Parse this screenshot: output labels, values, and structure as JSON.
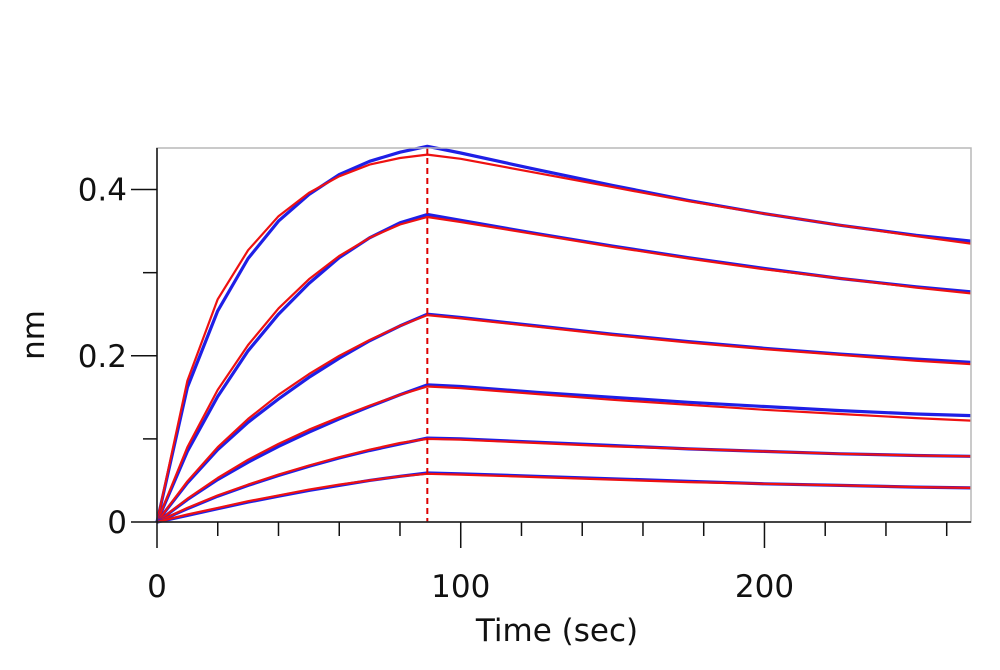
{
  "chart_data": {
    "type": "line",
    "xlabel": "Time (sec)",
    "ylabel": "nm",
    "xlim": [
      0,
      268
    ],
    "ylim": [
      0,
      0.45
    ],
    "x_ticks": [
      0,
      100,
      200
    ],
    "x_minor_step": 20,
    "y_ticks": [
      0,
      0.2,
      0.4
    ],
    "y_minor_step": 0.1,
    "grid": false,
    "legend": "none",
    "association_end_x": 89,
    "marker_color": "#dd0000",
    "series": [
      {
        "role": "measured",
        "color": "#1f1fe6",
        "x": [
          0,
          10,
          20,
          30,
          40,
          50,
          60,
          70,
          80,
          89,
          100,
          125,
          150,
          175,
          200,
          225,
          250,
          268
        ],
        "y": [
          0.0,
          0.162,
          0.254,
          0.317,
          0.362,
          0.394,
          0.418,
          0.434,
          0.445,
          0.452,
          0.444,
          0.424,
          0.405,
          0.387,
          0.371,
          0.357,
          0.345,
          0.338
        ]
      },
      {
        "role": "fit",
        "color": "#ee1111",
        "x": [
          0,
          10,
          20,
          30,
          40,
          50,
          60,
          70,
          80,
          89,
          100,
          125,
          150,
          175,
          200,
          225,
          250,
          268
        ],
        "y": [
          0.0,
          0.17,
          0.268,
          0.327,
          0.368,
          0.396,
          0.416,
          0.43,
          0.438,
          0.442,
          0.437,
          0.42,
          0.403,
          0.386,
          0.371,
          0.357,
          0.344,
          0.335
        ]
      },
      {
        "role": "measured",
        "color": "#1f1fe6",
        "x": [
          0,
          10,
          20,
          30,
          40,
          50,
          60,
          70,
          80,
          89,
          100,
          125,
          150,
          175,
          200,
          225,
          250,
          268
        ],
        "y": [
          0.0,
          0.085,
          0.151,
          0.206,
          0.25,
          0.287,
          0.318,
          0.342,
          0.36,
          0.37,
          0.363,
          0.347,
          0.332,
          0.318,
          0.305,
          0.293,
          0.283,
          0.277
        ]
      },
      {
        "role": "fit",
        "color": "#ee1111",
        "x": [
          0,
          10,
          20,
          30,
          40,
          50,
          60,
          70,
          80,
          89,
          100,
          125,
          150,
          175,
          200,
          225,
          250,
          268
        ],
        "y": [
          0.0,
          0.09,
          0.159,
          0.213,
          0.257,
          0.292,
          0.32,
          0.342,
          0.358,
          0.367,
          0.361,
          0.346,
          0.331,
          0.317,
          0.304,
          0.293,
          0.282,
          0.275
        ]
      },
      {
        "role": "measured",
        "color": "#1f1fe6",
        "x": [
          0,
          10,
          20,
          30,
          40,
          50,
          60,
          70,
          80,
          89,
          100,
          125,
          150,
          175,
          200,
          225,
          250,
          268
        ],
        "y": [
          0.0,
          0.047,
          0.087,
          0.12,
          0.148,
          0.174,
          0.197,
          0.218,
          0.236,
          0.25,
          0.246,
          0.236,
          0.226,
          0.217,
          0.209,
          0.202,
          0.196,
          0.192
        ]
      },
      {
        "role": "fit",
        "color": "#ee1111",
        "x": [
          0,
          10,
          20,
          30,
          40,
          50,
          60,
          70,
          80,
          89,
          100,
          125,
          150,
          175,
          200,
          225,
          250,
          268
        ],
        "y": [
          0.0,
          0.049,
          0.09,
          0.124,
          0.153,
          0.178,
          0.2,
          0.219,
          0.236,
          0.249,
          0.245,
          0.235,
          0.225,
          0.216,
          0.208,
          0.201,
          0.194,
          0.19
        ]
      },
      {
        "role": "measured",
        "color": "#1f1fe6",
        "x": [
          0,
          10,
          20,
          30,
          40,
          50,
          60,
          70,
          80,
          89,
          100,
          125,
          150,
          175,
          200,
          225,
          250,
          268
        ],
        "y": [
          0.0,
          0.027,
          0.051,
          0.072,
          0.091,
          0.108,
          0.124,
          0.139,
          0.153,
          0.165,
          0.163,
          0.156,
          0.15,
          0.144,
          0.139,
          0.134,
          0.13,
          0.128
        ]
      },
      {
        "role": "fit",
        "color": "#ee1111",
        "x": [
          0,
          10,
          20,
          30,
          40,
          50,
          60,
          70,
          80,
          89,
          100,
          125,
          150,
          175,
          200,
          225,
          250,
          268
        ],
        "y": [
          0.0,
          0.028,
          0.053,
          0.075,
          0.094,
          0.111,
          0.126,
          0.14,
          0.153,
          0.163,
          0.161,
          0.154,
          0.147,
          0.141,
          0.135,
          0.13,
          0.125,
          0.122
        ]
      },
      {
        "role": "measured",
        "color": "#1f1fe6",
        "x": [
          0,
          10,
          20,
          30,
          40,
          50,
          60,
          70,
          80,
          89,
          100,
          125,
          150,
          175,
          200,
          225,
          250,
          268
        ],
        "y": [
          0.0,
          0.016,
          0.031,
          0.044,
          0.056,
          0.067,
          0.077,
          0.086,
          0.094,
          0.101,
          0.1,
          0.096,
          0.092,
          0.088,
          0.085,
          0.082,
          0.08,
          0.079
        ]
      },
      {
        "role": "fit",
        "color": "#ee1111",
        "x": [
          0,
          10,
          20,
          30,
          40,
          50,
          60,
          70,
          80,
          89,
          100,
          125,
          150,
          175,
          200,
          225,
          250,
          268
        ],
        "y": [
          0.0,
          0.017,
          0.032,
          0.045,
          0.057,
          0.068,
          0.078,
          0.087,
          0.095,
          0.1,
          0.099,
          0.095,
          0.091,
          0.088,
          0.085,
          0.082,
          0.08,
          0.079
        ]
      },
      {
        "role": "measured",
        "color": "#1f1fe6",
        "x": [
          0,
          10,
          20,
          30,
          40,
          50,
          60,
          70,
          80,
          89,
          100,
          125,
          150,
          175,
          200,
          225,
          250,
          268
        ],
        "y": [
          0.0,
          0.008,
          0.016,
          0.024,
          0.031,
          0.038,
          0.044,
          0.05,
          0.055,
          0.059,
          0.058,
          0.055,
          0.052,
          0.049,
          0.046,
          0.044,
          0.042,
          0.041
        ]
      },
      {
        "role": "fit",
        "color": "#ee1111",
        "x": [
          0,
          10,
          20,
          30,
          40,
          50,
          60,
          70,
          80,
          89,
          100,
          125,
          150,
          175,
          200,
          225,
          250,
          268
        ],
        "y": [
          0.0,
          0.009,
          0.017,
          0.025,
          0.032,
          0.039,
          0.045,
          0.05,
          0.055,
          0.058,
          0.057,
          0.054,
          0.051,
          0.048,
          0.046,
          0.044,
          0.042,
          0.041
        ]
      }
    ]
  }
}
